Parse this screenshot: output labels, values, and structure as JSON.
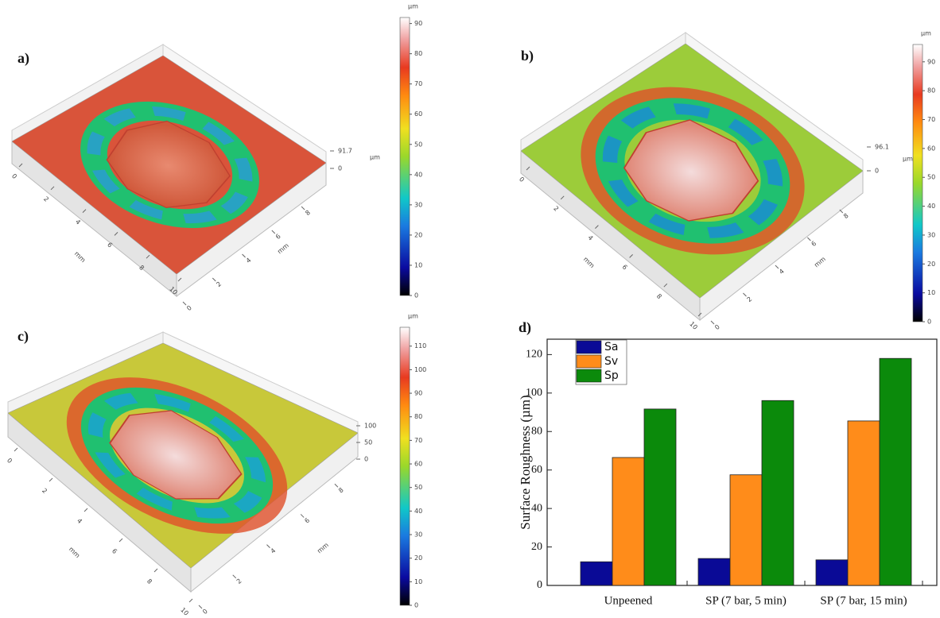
{
  "chart_data": [
    {
      "type": "surface",
      "panel_label": "a)",
      "colorbar_unit": "µm",
      "clim": [
        0,
        92
      ],
      "cticks": [
        0,
        10,
        20,
        30,
        40,
        50,
        60,
        70,
        80,
        90
      ],
      "zticks": [
        0,
        91.7
      ],
      "z_label": "µm",
      "x_label": "mm",
      "xlim": [
        0,
        10
      ],
      "xticks": [
        0,
        2,
        4,
        6,
        8,
        10
      ],
      "y_label": "mm",
      "ylim": [
        0,
        8.8
      ],
      "yticks": [
        0,
        2,
        4,
        6,
        8
      ]
    },
    {
      "type": "surface",
      "panel_label": "b)",
      "colorbar_unit": "µm",
      "clim": [
        0,
        96
      ],
      "cticks": [
        0,
        10,
        20,
        30,
        40,
        50,
        60,
        70,
        80,
        90
      ],
      "zticks": [
        0,
        96.1
      ],
      "z_label": "µm",
      "x_label": "mm",
      "xlim": [
        0,
        10
      ],
      "xticks": [
        0,
        2,
        4,
        6,
        8,
        10
      ],
      "y_label": "mm",
      "ylim": [
        0,
        8.8
      ],
      "yticks": [
        0,
        2,
        4,
        6,
        8
      ]
    },
    {
      "type": "surface",
      "panel_label": "c)",
      "colorbar_unit": "µm",
      "clim": [
        0,
        118
      ],
      "cticks": [
        0,
        10,
        20,
        30,
        40,
        50,
        60,
        70,
        80,
        90,
        100,
        110
      ],
      "zticks": [
        0,
        50,
        100
      ],
      "x_label": "mm",
      "xlim": [
        0,
        10
      ],
      "xticks": [
        0,
        2,
        4,
        6,
        8,
        10
      ],
      "y_label": "mm",
      "ylim": [
        0,
        8.8
      ],
      "yticks": [
        0,
        2,
        4,
        6,
        8
      ]
    },
    {
      "type": "bar",
      "panel_label": "d)",
      "y_label": "Surface Roughness (µm)",
      "categories": [
        "Unpeened",
        "SP (7 bar, 5 min)",
        "SP (7 bar, 15 min)"
      ],
      "series": [
        {
          "name": "Sa",
          "color": "#0a0a96",
          "values": [
            12.3,
            14,
            13.3
          ]
        },
        {
          "name": "Sv",
          "color": "#ff8c1a",
          "values": [
            66.5,
            57.5,
            85.5
          ]
        },
        {
          "name": "Sp",
          "color": "#0b8a0b",
          "values": [
            91.7,
            96.1,
            118
          ]
        }
      ],
      "ylim": [
        0,
        128
      ],
      "yticks": [
        0,
        20,
        40,
        60,
        80,
        100,
        120
      ],
      "legend": "upper-left"
    }
  ]
}
